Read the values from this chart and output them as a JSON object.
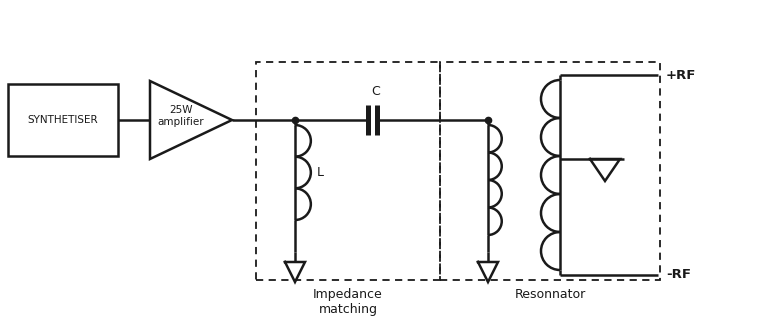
{
  "bg_color": "#ffffff",
  "line_color": "#1a1a1a",
  "line_width": 1.8,
  "fig_width": 7.76,
  "fig_height": 3.3,
  "dpi": 100,
  "label_impedance": "Impedance\nmatching",
  "label_resonator": "Resonnator",
  "label_synthetiser": "SYNTHETISER",
  "label_amplifier": "25W\namplifier",
  "label_C": "C",
  "label_L": "L",
  "label_plus_rf": "+RF",
  "label_minus_rf": "-RF"
}
